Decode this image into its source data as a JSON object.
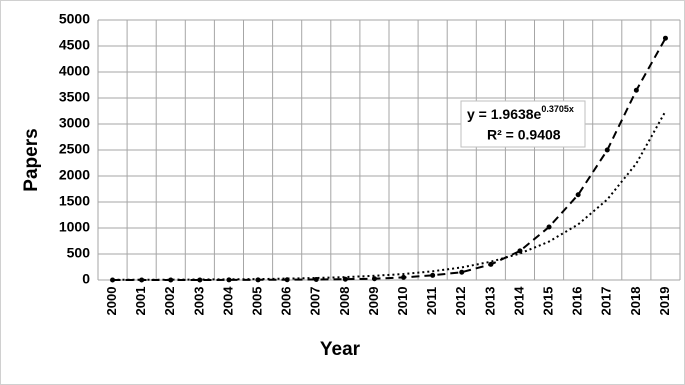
{
  "chart_data": {
    "type": "line",
    "x_label": "Year",
    "y_label": "Papers",
    "categories": [
      "2000",
      "2001",
      "2002",
      "2003",
      "2004",
      "2005",
      "2006",
      "2007",
      "2008",
      "2009",
      "2010",
      "2011",
      "2012",
      "2013",
      "2014",
      "2015",
      "2016",
      "2017",
      "2018",
      "2019"
    ],
    "series": [
      {
        "color": "#000000",
        "style": "dashed",
        "markers": true,
        "values": [
          0,
          0,
          0,
          0,
          2,
          3,
          5,
          10,
          15,
          25,
          50,
          90,
          150,
          300,
          560,
          1020,
          1640,
          2500,
          3650,
          4650
        ]
      },
      {
        "color": "#000000",
        "style": "dotted",
        "markers": false,
        "values": [
          3,
          4,
          6,
          9,
          13,
          18,
          26,
          38,
          55,
          80,
          116,
          168,
          243,
          352,
          509,
          738,
          1069,
          1548,
          2242,
          3247
        ]
      }
    ],
    "annotation": {
      "equation": "y = 1.9638e",
      "exponent": "0.3705x",
      "r_squared": "R² = 0.9408"
    },
    "ylim": [
      0,
      5000
    ],
    "yticks": [
      0,
      500,
      1000,
      1500,
      2000,
      2500,
      3000,
      3500,
      4000,
      4500,
      5000
    ],
    "grid": true
  }
}
